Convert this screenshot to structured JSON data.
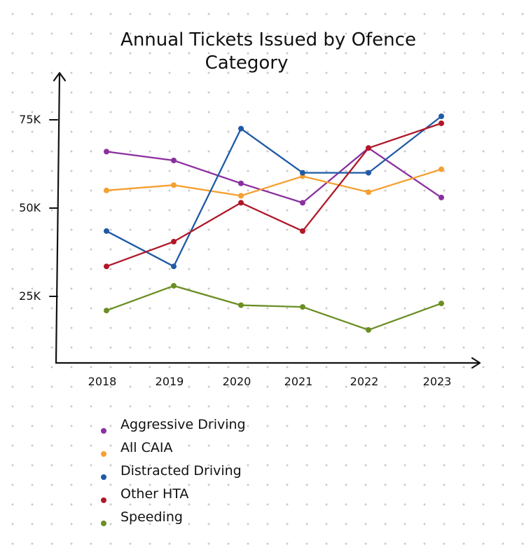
{
  "chart_data": {
    "type": "line",
    "title": "Annual Tickets Issued by Ofence Category",
    "title_lines": [
      "Annual Tickets Issued by Ofence",
      "Category"
    ],
    "xlabel": "",
    "ylabel": "",
    "categories": [
      "2018",
      "2019",
      "2020",
      "2021",
      "2022",
      "2023"
    ],
    "y_ticks": [
      25000,
      50000,
      75000
    ],
    "y_tick_labels": [
      "25K",
      "50K",
      "75K"
    ],
    "ylim": [
      5000,
      85000
    ],
    "grid": false,
    "legend_position": "bottom-left",
    "series": [
      {
        "name": "Aggressive Driving",
        "color": "#8b2fa0",
        "values": [
          66000,
          63500,
          57000,
          51500,
          67000,
          53000
        ]
      },
      {
        "name": "All CAIA",
        "color": "#f5a030",
        "values": [
          55000,
          56500,
          53500,
          59000,
          54500,
          61000
        ]
      },
      {
        "name": "Distracted Driving",
        "color": "#1f5aa6",
        "values": [
          43500,
          33500,
          72500,
          60000,
          60000,
          76000
        ]
      },
      {
        "name": "Other HTA",
        "color": "#b0182a",
        "values": [
          33500,
          40500,
          51500,
          43500,
          67000,
          74000
        ]
      },
      {
        "name": "Speeding",
        "color": "#6b8e23",
        "values": [
          21000,
          28000,
          22500,
          22000,
          15500,
          23000
        ]
      }
    ]
  }
}
